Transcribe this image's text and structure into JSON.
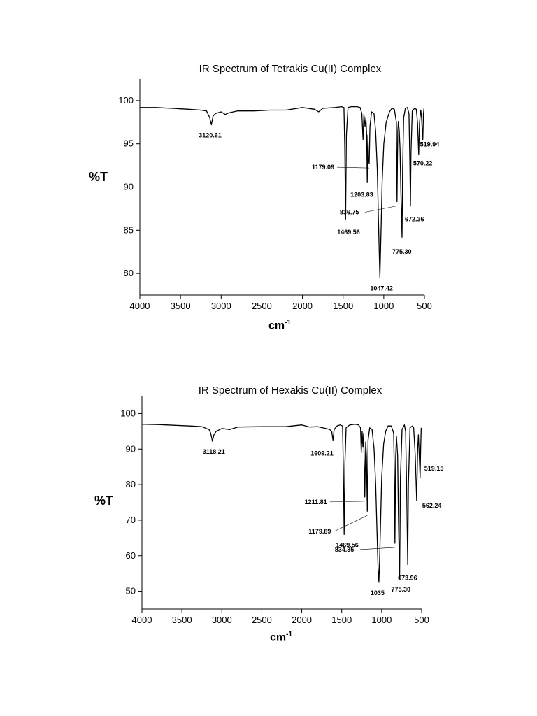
{
  "chart_data": [
    {
      "type": "line",
      "title": "IR Spectrum of Tetrakis Cu(II) Complex",
      "xlabel": "cm",
      "xlabel_sup": "-1",
      "ylabel": "%T",
      "xlim": [
        4000,
        500
      ],
      "ylim": [
        77.5,
        102.5
      ],
      "x_ticks": [
        4000,
        3500,
        3000,
        2500,
        2000,
        1500,
        1000,
        500
      ],
      "y_ticks": [
        80,
        85,
        90,
        95,
        100
      ],
      "grid": false,
      "series": [
        {
          "points": [
            [
              4000,
              99.2
            ],
            [
              3800,
              99.2
            ],
            [
              3600,
              99.1
            ],
            [
              3400,
              99.0
            ],
            [
              3250,
              98.9
            ],
            [
              3180,
              98.8
            ],
            [
              3140,
              98.0
            ],
            [
              3120.61,
              97.2
            ],
            [
              3100,
              98.2
            ],
            [
              3070,
              98.5
            ],
            [
              3000,
              98.7
            ],
            [
              2950,
              98.4
            ],
            [
              2900,
              98.6
            ],
            [
              2800,
              98.8
            ],
            [
              2600,
              98.8
            ],
            [
              2400,
              98.9
            ],
            [
              2200,
              98.9
            ],
            [
              2000,
              99.2
            ],
            [
              1850,
              99.0
            ],
            [
              1800,
              98.7
            ],
            [
              1750,
              99.1
            ],
            [
              1600,
              99.2
            ],
            [
              1520,
              99.3
            ],
            [
              1490,
              99.2
            ],
            [
              1480,
              95.0
            ],
            [
              1469.56,
              86.3
            ],
            [
              1460,
              96.0
            ],
            [
              1440,
              99.2
            ],
            [
              1400,
              99.3
            ],
            [
              1330,
              99.3
            ],
            [
              1290,
              99.2
            ],
            [
              1270,
              98.5
            ],
            [
              1255,
              95.5
            ],
            [
              1245,
              98.4
            ],
            [
              1230,
              97.0
            ],
            [
              1220,
              98.0
            ],
            [
              1210,
              96.0
            ],
            [
              1203.83,
              90.5
            ],
            [
              1195,
              96.0
            ],
            [
              1190,
              93.5
            ],
            [
              1179.09,
              92.7
            ],
            [
              1170,
              97.0
            ],
            [
              1150,
              98.7
            ],
            [
              1120,
              98.5
            ],
            [
              1100,
              96.5
            ],
            [
              1080,
              92.0
            ],
            [
              1065,
              86.0
            ],
            [
              1055,
              82.0
            ],
            [
              1047.42,
              79.5
            ],
            [
              1040,
              82.5
            ],
            [
              1030,
              86.5
            ],
            [
              1020,
              90.5
            ],
            [
              1000,
              95.0
            ],
            [
              970,
              97.5
            ],
            [
              930,
              98.7
            ],
            [
              900,
              99.1
            ],
            [
              870,
              99.0
            ],
            [
              845,
              97.5
            ],
            [
              836.75,
              88.3
            ],
            [
              828,
              96.5
            ],
            [
              820,
              97.6
            ],
            [
              810,
              96.5
            ],
            [
              800,
              94.5
            ],
            [
              790,
              89.5
            ],
            [
              775.3,
              84.2
            ],
            [
              768,
              92.0
            ],
            [
              755,
              98.0
            ],
            [
              735,
              99.1
            ],
            [
              710,
              99.2
            ],
            [
              690,
              98.5
            ],
            [
              680,
              93.0
            ],
            [
              672.36,
              87.8
            ],
            [
              665,
              94.0
            ],
            [
              650,
              98.8
            ],
            [
              620,
              99.1
            ],
            [
              600,
              99.0
            ],
            [
              585,
              97.5
            ],
            [
              570.22,
              93.8
            ],
            [
              560,
              97.5
            ],
            [
              545,
              98.9
            ],
            [
              535,
              98.0
            ],
            [
              525,
              96.2
            ],
            [
              519.94,
              95.5
            ],
            [
              512,
              98.5
            ],
            [
              505,
              99.1
            ]
          ]
        }
      ],
      "peak_labels": [
        {
          "text": "3120.61",
          "x": 3120.61,
          "y": 97.2
        },
        {
          "text": "1469.56",
          "x": 1469.56,
          "y": 86.3
        },
        {
          "text": "1203.83",
          "x": 1203.83,
          "y": 90.5
        },
        {
          "text": "1179.09",
          "x": 1179.09,
          "y": 92.7
        },
        {
          "text": "1047.42",
          "x": 1047.42,
          "y": 79.5
        },
        {
          "text": "836.75",
          "x": 836.75,
          "y": 88.3
        },
        {
          "text": "775.30",
          "x": 775.3,
          "y": 84.2
        },
        {
          "text": "672.36",
          "x": 672.36,
          "y": 87.8
        },
        {
          "text": "570.22",
          "x": 570.22,
          "y": 93.8
        },
        {
          "text": "519.94",
          "x": 519.94,
          "y": 95.5
        }
      ]
    },
    {
      "type": "line",
      "title": "IR Spectrum of Hexakis Cu(II) Complex",
      "xlabel": "cm",
      "xlabel_sup": "-1",
      "ylabel": "%T",
      "xlim": [
        4000,
        500
      ],
      "ylim": [
        45,
        105
      ],
      "x_ticks": [
        4000,
        3500,
        3000,
        2500,
        2000,
        1500,
        1000,
        500
      ],
      "y_ticks": [
        50,
        60,
        70,
        80,
        90,
        100
      ],
      "grid": false,
      "series": [
        {
          "points": [
            [
              4000,
              97.0
            ],
            [
              3800,
              96.9
            ],
            [
              3600,
              96.7
            ],
            [
              3400,
              96.5
            ],
            [
              3250,
              96.3
            ],
            [
              3160,
              95.5
            ],
            [
              3140,
              94.5
            ],
            [
              3118.21,
              92.2
            ],
            [
              3100,
              94.0
            ],
            [
              3070,
              95.0
            ],
            [
              3000,
              95.8
            ],
            [
              2900,
              95.5
            ],
            [
              2800,
              96.2
            ],
            [
              2500,
              96.3
            ],
            [
              2200,
              96.3
            ],
            [
              2000,
              96.8
            ],
            [
              1900,
              96.2
            ],
            [
              1800,
              96.3
            ],
            [
              1700,
              95.8
            ],
            [
              1650,
              95.5
            ],
            [
              1625,
              95.0
            ],
            [
              1609.21,
              92.5
            ],
            [
              1595,
              95.5
            ],
            [
              1560,
              96.5
            ],
            [
              1520,
              96.8
            ],
            [
              1490,
              96.5
            ],
            [
              1480,
              85.0
            ],
            [
              1469.56,
              66.0
            ],
            [
              1460,
              86.0
            ],
            [
              1445,
              96.0
            ],
            [
              1400,
              96.8
            ],
            [
              1330,
              97.0
            ],
            [
              1290,
              96.8
            ],
            [
              1265,
              96.0
            ],
            [
              1255,
              89.0
            ],
            [
              1245,
              95.0
            ],
            [
              1235,
              90.5
            ],
            [
              1225,
              94.5
            ],
            [
              1211.81,
              76.5
            ],
            [
              1200,
              92.0
            ],
            [
              1190,
              88.0
            ],
            [
              1179.89,
              72.5
            ],
            [
              1170,
              92.5
            ],
            [
              1150,
              96.0
            ],
            [
              1120,
              95.5
            ],
            [
              1095,
              90.0
            ],
            [
              1075,
              80.0
            ],
            [
              1060,
              68.0
            ],
            [
              1045,
              56.5
            ],
            [
              1035,
              52.5
            ],
            [
              1027,
              58.0
            ],
            [
              1015,
              68.0
            ],
            [
              1000,
              82.0
            ],
            [
              975,
              91.5
            ],
            [
              950,
              95.0
            ],
            [
              920,
              96.5
            ],
            [
              880,
              96.5
            ],
            [
              850,
              94.5
            ],
            [
              840,
              82.0
            ],
            [
              834.35,
              63.5
            ],
            [
              825,
              88.0
            ],
            [
              815,
              93.5
            ],
            [
              800,
              88.0
            ],
            [
              790,
              70.0
            ],
            [
              775.3,
              53.5
            ],
            [
              765,
              82.0
            ],
            [
              745,
              95.5
            ],
            [
              715,
              96.8
            ],
            [
              700,
              95.0
            ],
            [
              688,
              80.0
            ],
            [
              673.96,
              57.5
            ],
            [
              665,
              80.0
            ],
            [
              645,
              96.0
            ],
            [
              615,
              96.5
            ],
            [
              600,
              96.0
            ],
            [
              580,
              88.0
            ],
            [
              562.24,
              75.5
            ],
            [
              550,
              90.0
            ],
            [
              540,
              94.0
            ],
            [
              530,
              88.0
            ],
            [
              519.15,
              82.0
            ],
            [
              512,
              90.0
            ],
            [
              505,
              96.0
            ]
          ]
        }
      ],
      "peak_labels": [
        {
          "text": "3118.21",
          "x": 3118.21,
          "y": 92.2
        },
        {
          "text": "1609.21",
          "x": 1609.21,
          "y": 92.5
        },
        {
          "text": "1469.56",
          "x": 1469.56,
          "y": 66.0
        },
        {
          "text": "1211.81",
          "x": 1211.81,
          "y": 76.5
        },
        {
          "text": "1179.89",
          "x": 1179.89,
          "y": 72.5
        },
        {
          "text": "1035",
          "x": 1035,
          "y": 52.5
        },
        {
          "text": "834.35",
          "x": 834.35,
          "y": 63.5
        },
        {
          "text": "775.30",
          "x": 775.3,
          "y": 53.5
        },
        {
          "text": "673.96",
          "x": 673.96,
          "y": 57.5
        },
        {
          "text": "562.24",
          "x": 562.24,
          "y": 75.5
        },
        {
          "text": "519.15",
          "x": 519.15,
          "y": 82.0
        }
      ]
    }
  ]
}
